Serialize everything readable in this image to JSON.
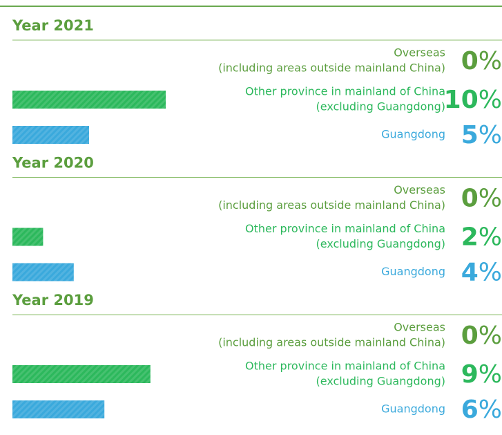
{
  "chart_data": [
    {
      "type": "bar",
      "title": "Year 2021",
      "categories": [
        [
          "Overseas",
          "(including areas outside mainland China)"
        ],
        [
          "Other province in mainland of China",
          "(excluding Guangdong)"
        ],
        [
          "Guangdong"
        ]
      ],
      "values": [
        0,
        10,
        5
      ],
      "value_labels": [
        "0%",
        "10%",
        "5%"
      ],
      "colors": [
        "#5b9e3e",
        "#2cb85c",
        "#3aa9dc"
      ]
    },
    {
      "type": "bar",
      "title": "Year 2020",
      "categories": [
        [
          "Overseas",
          "(including areas outside mainland China)"
        ],
        [
          "Other province in mainland of China",
          "(excluding Guangdong)"
        ],
        [
          "Guangdong"
        ]
      ],
      "values": [
        0,
        2,
        4
      ],
      "value_labels": [
        "0%",
        "2%",
        "4%"
      ],
      "colors": [
        "#5b9e3e",
        "#2cb85c",
        "#3aa9dc"
      ]
    },
    {
      "type": "bar",
      "title": "Year 2019",
      "categories": [
        [
          "Overseas",
          "(including areas outside mainland China)"
        ],
        [
          "Other province in mainland of China",
          "(excluding Guangdong)"
        ],
        [
          "Guangdong"
        ]
      ],
      "values": [
        0,
        9,
        6
      ],
      "value_labels": [
        "0%",
        "9%",
        "6%"
      ],
      "colors": [
        "#5b9e3e",
        "#2cb85c",
        "#3aa9dc"
      ]
    }
  ]
}
